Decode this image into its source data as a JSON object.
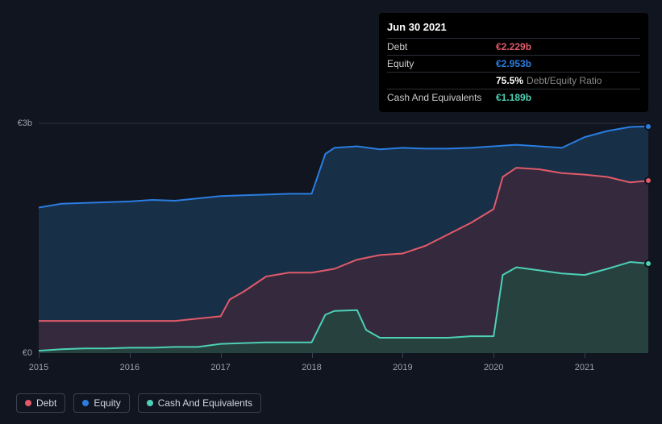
{
  "chart": {
    "type": "area",
    "background_color": "#10151f",
    "grid_color": "#2a2f38",
    "axis_line_color": "#3a4150",
    "xlim": [
      2015,
      2021.7
    ],
    "ylim": [
      0,
      3.2
    ],
    "y_ticks": [
      {
        "value": 0,
        "label": "€0"
      },
      {
        "value": 3,
        "label": "€3b"
      }
    ],
    "x_ticks": [
      {
        "value": 2015,
        "label": "2015"
      },
      {
        "value": 2016,
        "label": "2016"
      },
      {
        "value": 2017,
        "label": "2017"
      },
      {
        "value": 2018,
        "label": "2018"
      },
      {
        "value": 2019,
        "label": "2019"
      },
      {
        "value": 2020,
        "label": "2020"
      },
      {
        "value": 2021,
        "label": "2021"
      }
    ],
    "series": [
      {
        "key": "equity",
        "label": "Equity",
        "stroke": "#2a7de1",
        "fill": "#1c3a5a",
        "fill_opacity": 0.7,
        "line_width": 2,
        "points": [
          [
            2015,
            1.9
          ],
          [
            2015.25,
            1.95
          ],
          [
            2015.5,
            1.96
          ],
          [
            2015.75,
            1.97
          ],
          [
            2016,
            1.98
          ],
          [
            2016.25,
            2.0
          ],
          [
            2016.5,
            1.99
          ],
          [
            2016.75,
            2.02
          ],
          [
            2017,
            2.05
          ],
          [
            2017.25,
            2.06
          ],
          [
            2017.5,
            2.07
          ],
          [
            2017.75,
            2.08
          ],
          [
            2018,
            2.08
          ],
          [
            2018.15,
            2.6
          ],
          [
            2018.25,
            2.68
          ],
          [
            2018.5,
            2.7
          ],
          [
            2018.75,
            2.66
          ],
          [
            2019,
            2.68
          ],
          [
            2019.25,
            2.67
          ],
          [
            2019.5,
            2.67
          ],
          [
            2019.75,
            2.68
          ],
          [
            2020,
            2.7
          ],
          [
            2020.25,
            2.72
          ],
          [
            2020.5,
            2.7
          ],
          [
            2020.75,
            2.68
          ],
          [
            2021,
            2.82
          ],
          [
            2021.25,
            2.9
          ],
          [
            2021.5,
            2.953
          ],
          [
            2021.7,
            2.96
          ]
        ]
      },
      {
        "key": "debt",
        "label": "Debt",
        "stroke": "#e15a6a",
        "fill": "#3f2a3a",
        "fill_opacity": 0.75,
        "line_width": 2,
        "points": [
          [
            2015,
            0.42
          ],
          [
            2015.25,
            0.42
          ],
          [
            2015.5,
            0.42
          ],
          [
            2015.75,
            0.42
          ],
          [
            2016,
            0.42
          ],
          [
            2016.25,
            0.42
          ],
          [
            2016.5,
            0.42
          ],
          [
            2016.75,
            0.45
          ],
          [
            2017,
            0.48
          ],
          [
            2017.1,
            0.7
          ],
          [
            2017.25,
            0.8
          ],
          [
            2017.5,
            1.0
          ],
          [
            2017.75,
            1.05
          ],
          [
            2018,
            1.05
          ],
          [
            2018.25,
            1.1
          ],
          [
            2018.5,
            1.22
          ],
          [
            2018.75,
            1.28
          ],
          [
            2019,
            1.3
          ],
          [
            2019.25,
            1.4
          ],
          [
            2019.5,
            1.55
          ],
          [
            2019.75,
            1.7
          ],
          [
            2020,
            1.88
          ],
          [
            2020.1,
            2.3
          ],
          [
            2020.25,
            2.42
          ],
          [
            2020.5,
            2.4
          ],
          [
            2020.75,
            2.35
          ],
          [
            2021,
            2.33
          ],
          [
            2021.25,
            2.3
          ],
          [
            2021.5,
            2.229
          ],
          [
            2021.7,
            2.25
          ]
        ]
      },
      {
        "key": "cash",
        "label": "Cash And Equivalents",
        "stroke": "#4dd0b5",
        "fill": "#25453f",
        "fill_opacity": 0.85,
        "line_width": 2,
        "points": [
          [
            2015,
            0.03
          ],
          [
            2015.25,
            0.05
          ],
          [
            2015.5,
            0.06
          ],
          [
            2015.75,
            0.06
          ],
          [
            2016,
            0.07
          ],
          [
            2016.25,
            0.07
          ],
          [
            2016.5,
            0.08
          ],
          [
            2016.75,
            0.08
          ],
          [
            2017,
            0.12
          ],
          [
            2017.25,
            0.13
          ],
          [
            2017.5,
            0.14
          ],
          [
            2017.75,
            0.14
          ],
          [
            2018,
            0.14
          ],
          [
            2018.15,
            0.5
          ],
          [
            2018.25,
            0.55
          ],
          [
            2018.5,
            0.56
          ],
          [
            2018.6,
            0.3
          ],
          [
            2018.75,
            0.2
          ],
          [
            2019,
            0.2
          ],
          [
            2019.25,
            0.2
          ],
          [
            2019.5,
            0.2
          ],
          [
            2019.75,
            0.22
          ],
          [
            2020,
            0.22
          ],
          [
            2020.1,
            1.02
          ],
          [
            2020.25,
            1.12
          ],
          [
            2020.5,
            1.08
          ],
          [
            2020.75,
            1.04
          ],
          [
            2021,
            1.02
          ],
          [
            2021.25,
            1.1
          ],
          [
            2021.5,
            1.189
          ],
          [
            2021.7,
            1.17
          ]
        ]
      }
    ],
    "markers": [
      {
        "series": "equity",
        "x": 2021.7,
        "y": 2.96,
        "color": "#2a7de1"
      },
      {
        "series": "debt",
        "x": 2021.7,
        "y": 2.25,
        "color": "#e15a6a"
      },
      {
        "series": "cash",
        "x": 2021.7,
        "y": 1.17,
        "color": "#4dd0b5"
      }
    ]
  },
  "tooltip": {
    "date": "Jun 30 2021",
    "rows": [
      {
        "label": "Debt",
        "value": "€2.229b",
        "color": "#e15a6a"
      },
      {
        "label": "Equity",
        "value": "€2.953b",
        "color": "#2a7de1"
      },
      {
        "label": "",
        "value": "75.5%",
        "color": "#ffffff",
        "extra": "Debt/Equity Ratio"
      },
      {
        "label": "Cash And Equivalents",
        "value": "€1.189b",
        "color": "#4dd0b5"
      }
    ]
  },
  "legend": {
    "items": [
      {
        "key": "debt",
        "label": "Debt",
        "color": "#e15a6a"
      },
      {
        "key": "equity",
        "label": "Equity",
        "color": "#2a7de1"
      },
      {
        "key": "cash",
        "label": "Cash And Equivalents",
        "color": "#4dd0b5"
      }
    ]
  }
}
